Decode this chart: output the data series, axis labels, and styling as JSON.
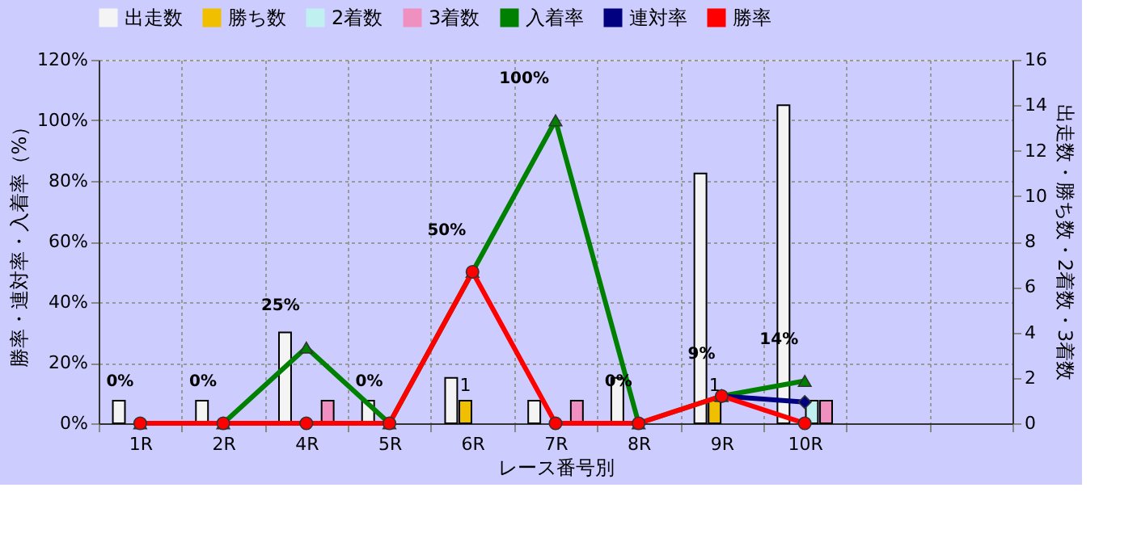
{
  "chart_data": {
    "type": "bar",
    "categories": [
      "1R",
      "2R",
      "4R",
      "5R",
      "6R",
      "7R",
      "8R",
      "9R",
      "10R",
      null,
      null
    ],
    "xlabel": "レース番号別",
    "ylabel": "勝率・連対率・入着率（%）",
    "y2label": "出走数・勝ち数・2着数・3着数",
    "series": [
      {
        "name": "出走数",
        "axis": "y2",
        "color": "#f4f4f4",
        "values": [
          1,
          1,
          4,
          1,
          2,
          1,
          2,
          11,
          14,
          null,
          null
        ]
      },
      {
        "name": "勝ち数",
        "axis": "y2",
        "color": "#f0c000",
        "values": [
          null,
          null,
          null,
          null,
          1,
          null,
          null,
          1,
          null,
          null,
          null
        ],
        "value_labels": [
          null,
          null,
          null,
          null,
          "1",
          null,
          null,
          "1",
          null,
          null,
          null
        ]
      },
      {
        "name": "2着数",
        "axis": "y2",
        "color": "#c0f0f0",
        "values": [
          null,
          null,
          null,
          null,
          null,
          null,
          null,
          null,
          1,
          null,
          null
        ]
      },
      {
        "name": "3着数",
        "axis": "y2",
        "color": "#f090c0",
        "values": [
          null,
          null,
          1,
          null,
          null,
          1,
          null,
          null,
          1,
          null,
          null
        ]
      },
      {
        "name": "入着率",
        "type": "line",
        "marker": "triangle",
        "color": "#008000",
        "values": [
          0,
          0,
          25,
          0,
          50,
          100,
          0,
          9,
          14,
          null,
          null
        ],
        "value_labels": [
          "0%",
          "0%",
          "25%",
          "0%",
          "50%",
          "100%",
          "0%",
          "9%",
          "14%",
          null,
          null
        ]
      },
      {
        "name": "連対率",
        "type": "line",
        "marker": "diamond",
        "color": "#000080",
        "values": [
          null,
          null,
          null,
          null,
          null,
          null,
          null,
          9,
          7,
          null,
          null
        ]
      },
      {
        "name": "勝率",
        "type": "line",
        "marker": "circle",
        "color": "#ff0000",
        "values": [
          0,
          0,
          0,
          0,
          50,
          0,
          0,
          9,
          0,
          null,
          null
        ]
      }
    ],
    "ylim": [
      0,
      120
    ],
    "yticks": [
      {
        "value": 0,
        "label": "0%"
      },
      {
        "value": 20,
        "label": "20%"
      },
      {
        "value": 40,
        "label": "40%"
      },
      {
        "value": 60,
        "label": "60%"
      },
      {
        "value": 80,
        "label": "80%"
      },
      {
        "value": 100,
        "label": "100%"
      },
      {
        "value": 120,
        "label": "120%"
      }
    ],
    "y2lim": [
      0,
      16
    ],
    "y2ticks": [
      0,
      2,
      4,
      6,
      8,
      10,
      12,
      14,
      16
    ],
    "grid": true,
    "legend": "top"
  }
}
